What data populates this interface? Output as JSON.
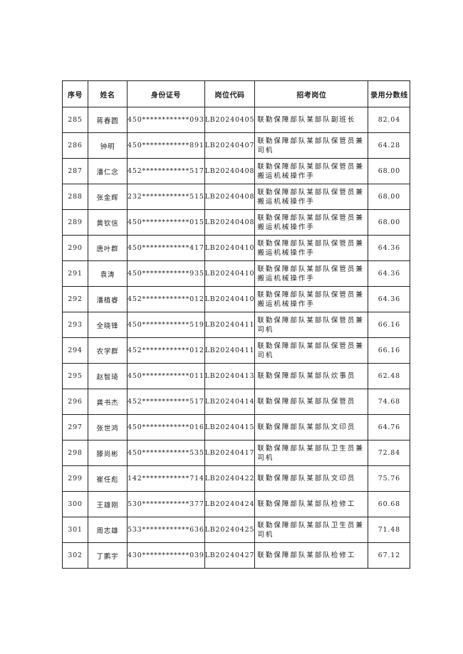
{
  "headers": [
    "序号",
    "姓名",
    "身份证号",
    "岗位代码",
    "招考岗位",
    "录用分数线"
  ],
  "rows": [
    [
      "285",
      "蒋春圆",
      "450************093",
      "LB20240405",
      "联勤保障部队某部队副班长",
      "82.04"
    ],
    [
      "286",
      "钟明",
      "450************891",
      "LB20240407",
      "联勤保障部队某部队保管员兼司机",
      "64.28"
    ],
    [
      "287",
      "潘仁念",
      "452************517",
      "LB20240408",
      "联勤保障部队某部队保管员兼搬运机械操作手",
      "68.00"
    ],
    [
      "288",
      "张金辉",
      "232************515",
      "LB20240408",
      "联勤保障部队某部队保管员兼搬运机械操作手",
      "68.00"
    ],
    [
      "289",
      "黄钦信",
      "450************015",
      "LB20240408",
      "联勤保障部队某部队保管员兼搬运机械操作手",
      "68.00"
    ],
    [
      "290",
      "唐叶群",
      "450************417",
      "LB20240410",
      "联勤保障部队某部队保管员兼搬运机械操作手",
      "64.36"
    ],
    [
      "291",
      "袁涛",
      "450************935",
      "LB20240410",
      "联勤保障部队某部队保管员兼搬运机械操作手",
      "64.36"
    ],
    [
      "292",
      "潘植睿",
      "452************012",
      "LB20240410",
      "联勤保障部队某部队保管员兼搬运机械操作手",
      "64.36"
    ],
    [
      "293",
      "全晓锋",
      "450************519",
      "LB20240411",
      "联勤保障部队某部队保管员兼司机",
      "66.16"
    ],
    [
      "294",
      "农学群",
      "452************012",
      "LB20240411",
      "联勤保障部队某部队保管员兼司机",
      "66.16"
    ],
    [
      "295",
      "赵智琦",
      "450************011",
      "LB20240413",
      "联勤保障部队某部队炊事员",
      "62.48"
    ],
    [
      "296",
      "龚书杰",
      "452************517",
      "LB20240414",
      "联勤保障部队某部队保管员",
      "74.68"
    ],
    [
      "297",
      "张世鸿",
      "450************016",
      "LB20240415",
      "联勤保障部队某部队文印员",
      "64.76"
    ],
    [
      "298",
      "滕尚彬",
      "450************535",
      "LB20240417",
      "联勤保障部队某部队卫生员兼司机",
      "72.84"
    ],
    [
      "299",
      "崔任彪",
      "142************714",
      "LB20240422",
      "联勤保障部队某部队文印员",
      "75.76"
    ],
    [
      "300",
      "王雄刚",
      "530************377",
      "LB20240424",
      "联勤保障部队某部队检修工",
      "60.68"
    ],
    [
      "301",
      "周志雄",
      "533************636",
      "LB20240425",
      "联勤保障部队某部队卫生员兼司机",
      "71.48"
    ],
    [
      "302",
      "丁鹏宇",
      "430************039",
      "LB20240427",
      "联勤保障部队某部队检修工",
      "67.12"
    ]
  ]
}
